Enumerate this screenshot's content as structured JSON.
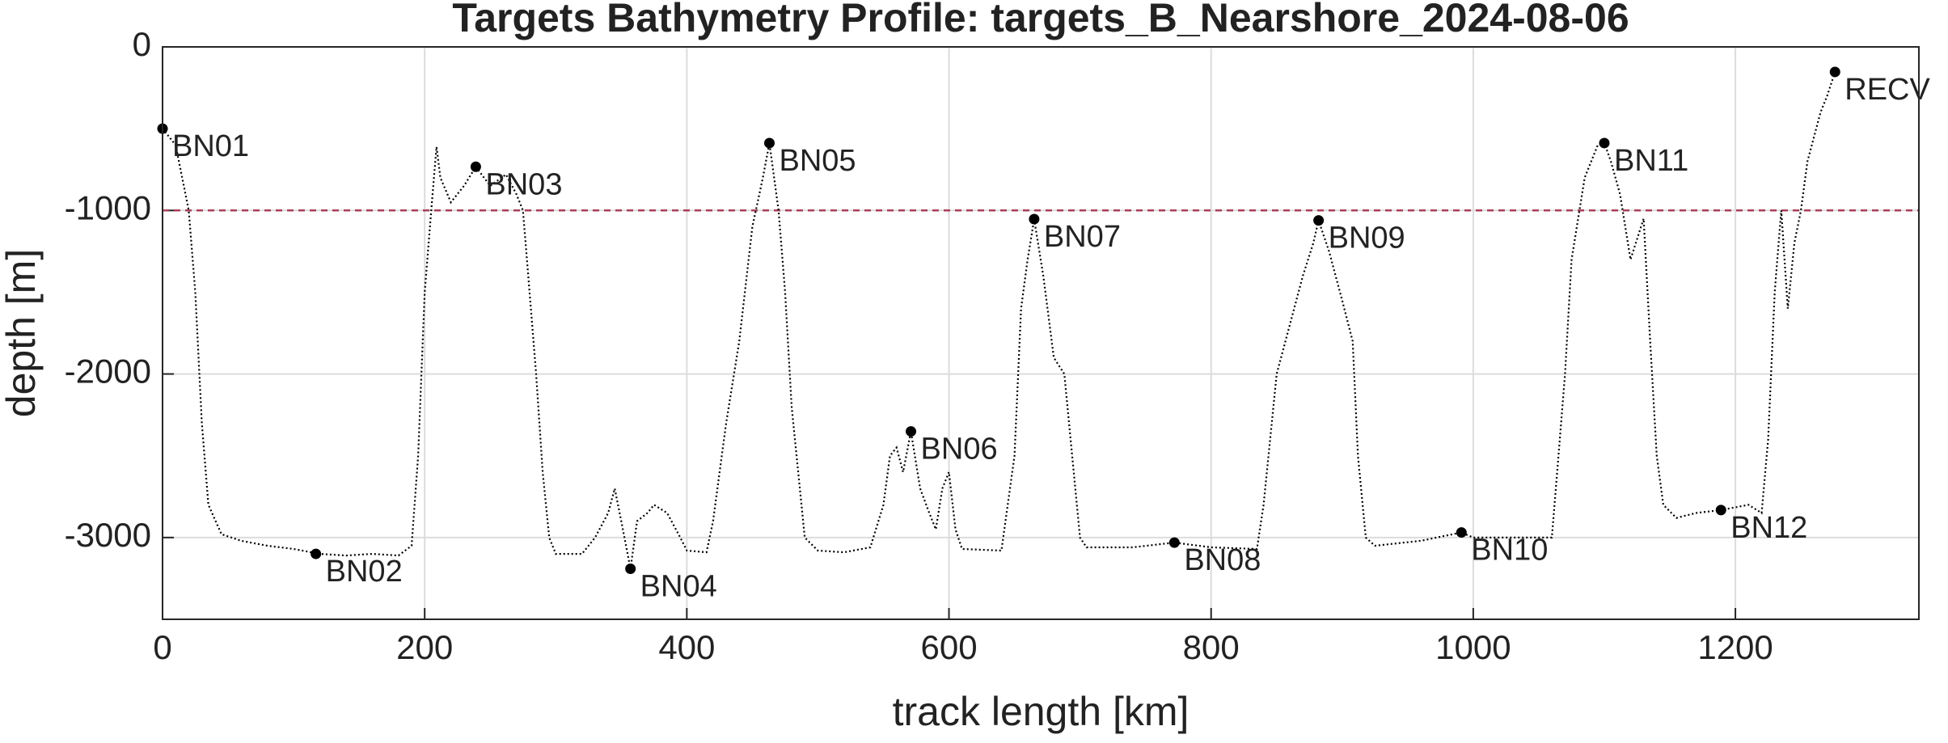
{
  "chart_data": {
    "type": "line",
    "title": "Targets Bathymetry Profile: targets_B_Nearshore_2024-08-06",
    "xlabel": "track length [km]",
    "ylabel": "depth [m]",
    "xlim": [
      0,
      1340
    ],
    "ylim": [
      -3500,
      0
    ],
    "xticks": [
      0,
      200,
      400,
      600,
      800,
      1000,
      1200
    ],
    "yticks": [
      -3000,
      -2000,
      -1000,
      0
    ],
    "grid": true,
    "color": "#000000",
    "x": [
      0,
      10,
      20,
      25,
      30,
      35,
      45,
      60,
      80,
      100,
      120,
      140,
      160,
      180,
      190,
      195,
      200,
      205,
      209,
      212,
      220,
      230,
      239,
      250,
      262,
      270,
      275,
      280,
      285,
      290,
      295,
      300,
      320,
      330,
      340,
      345,
      350,
      357,
      362,
      370,
      375,
      385,
      395,
      400,
      415,
      420,
      425,
      430,
      440,
      450,
      458,
      463,
      470,
      475,
      480,
      490,
      500,
      520,
      540,
      550,
      555,
      560,
      565,
      571,
      578,
      585,
      590,
      595,
      600,
      605,
      610,
      640,
      650,
      655,
      660,
      665,
      672,
      680,
      688,
      700,
      705,
      740,
      772,
      800,
      835,
      840,
      850,
      860,
      870,
      878,
      882,
      890,
      900,
      908,
      912,
      918,
      925,
      960,
      991,
      1000,
      1060,
      1065,
      1070,
      1075,
      1085,
      1095,
      1100,
      1105,
      1112,
      1120,
      1130,
      1135,
      1140,
      1145,
      1155,
      1170,
      1189,
      1210,
      1220,
      1225,
      1230,
      1235,
      1240,
      1245,
      1250,
      1255,
      1265,
      1270,
      1276
    ],
    "values": [
      -500,
      -600,
      -1000,
      -1500,
      -2300,
      -2800,
      -2980,
      -3020,
      -3050,
      -3070,
      -3100,
      -3110,
      -3100,
      -3110,
      -3050,
      -2500,
      -1500,
      -1000,
      -611,
      -800,
      -950,
      -850,
      -733,
      -850,
      -780,
      -900,
      -1000,
      -1500,
      -2000,
      -2600,
      -3000,
      -3100,
      -3100,
      -3000,
      -2850,
      -2700,
      -2900,
      -3191,
      -2900,
      -2850,
      -2800,
      -2850,
      -3000,
      -3080,
      -3090,
      -2900,
      -2600,
      -2300,
      -1800,
      -1100,
      -800,
      -588,
      -1000,
      -1500,
      -2200,
      -3000,
      -3080,
      -3090,
      -3060,
      -2800,
      -2500,
      -2450,
      -2600,
      -2351,
      -2700,
      -2850,
      -2950,
      -2700,
      -2600,
      -2950,
      -3070,
      -3080,
      -2500,
      -1600,
      -1300,
      -1053,
      -1400,
      -1900,
      -2000,
      -3000,
      -3060,
      -3060,
      -3031,
      -3060,
      -3070,
      -2800,
      -2000,
      -1700,
      -1400,
      -1200,
      -1061,
      -1250,
      -1550,
      -1800,
      -2500,
      -3000,
      -3050,
      -3020,
      -2969,
      -3000,
      -3000,
      -2500,
      -2000,
      -1300,
      -800,
      -600,
      -588,
      -700,
      -900,
      -1300,
      -1050,
      -1800,
      -2500,
      -2800,
      -2880,
      -2850,
      -2832,
      -2800,
      -2850,
      -2400,
      -1500,
      -1000,
      -1600,
      -1200,
      -1000,
      -700,
      -400,
      -300,
      -153
    ],
    "reference_lines": [
      {
        "value": -1000,
        "color": "#a8405a"
      }
    ],
    "targets": {
      "names": [
        "BN01",
        "BN02",
        "BN03",
        "BN04",
        "BN05",
        "BN06",
        "BN07",
        "BN08",
        "BN09",
        "BN10",
        "BN11",
        "BN12",
        "RECV"
      ],
      "x": [
        0,
        117,
        239,
        357,
        463,
        571,
        665,
        772,
        882,
        991,
        1100,
        1189,
        1276
      ],
      "values": [
        -500,
        -3100,
        -733,
        -3191,
        -588,
        -2351,
        -1053,
        -3031,
        -1061,
        -2969,
        -588,
        -2832,
        -153
      ],
      "color": "#000000"
    }
  }
}
